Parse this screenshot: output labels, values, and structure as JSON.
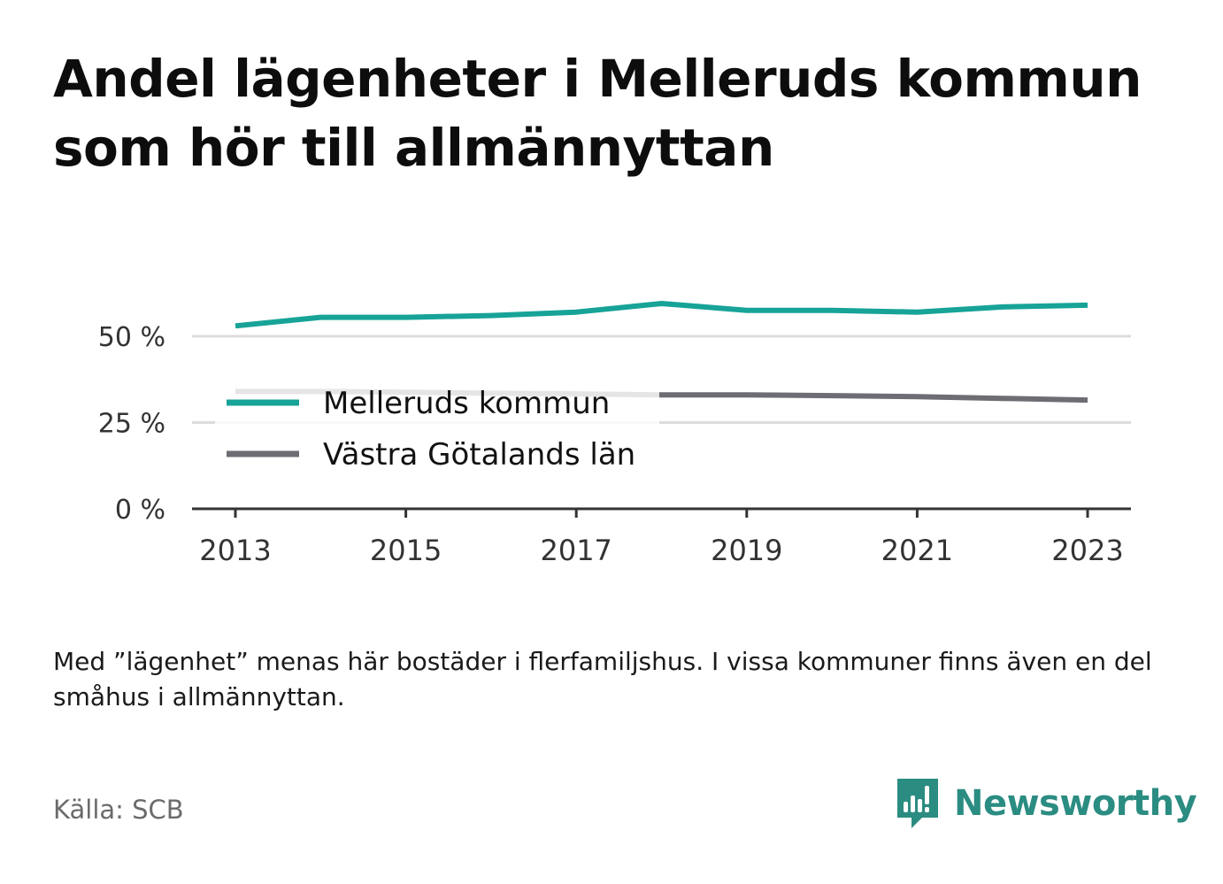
{
  "title": "Andel lägenheter i Melleruds kommun som hör till allmännyttan",
  "note": "Med ”lägenhet” menas här bostäder i flerfamiljshus. I vissa kommuner finns även en del småhus i allmännyttan.",
  "source": "Källa: SCB",
  "brand": {
    "name": "Newsworthy",
    "icon": "newsworthy-logo-icon",
    "color": "#2b8c82"
  },
  "chart_data": {
    "type": "line",
    "x": [
      2013,
      2014,
      2015,
      2016,
      2017,
      2018,
      2019,
      2020,
      2021,
      2022,
      2023
    ],
    "x_tick_labels": [
      "2013",
      "2015",
      "2017",
      "2019",
      "2021",
      "2023"
    ],
    "y_tick_labels": [
      "0 %",
      "25 %",
      "50 %"
    ],
    "y_ticks": [
      0,
      25,
      50
    ],
    "ylim": [
      0,
      60
    ],
    "grid": true,
    "legend_placement": "center-left",
    "series": [
      {
        "name": "Melleruds kommun",
        "color": "#17a398",
        "values": [
          53.0,
          55.5,
          55.5,
          56.0,
          57.0,
          59.5,
          57.5,
          57.5,
          57.0,
          58.5,
          59.0
        ]
      },
      {
        "name": "Västra Götalands län",
        "color": "#6e6d74",
        "values": [
          34.0,
          34.0,
          33.8,
          33.5,
          33.3,
          33.0,
          33.0,
          32.8,
          32.5,
          32.0,
          31.5
        ]
      }
    ]
  }
}
